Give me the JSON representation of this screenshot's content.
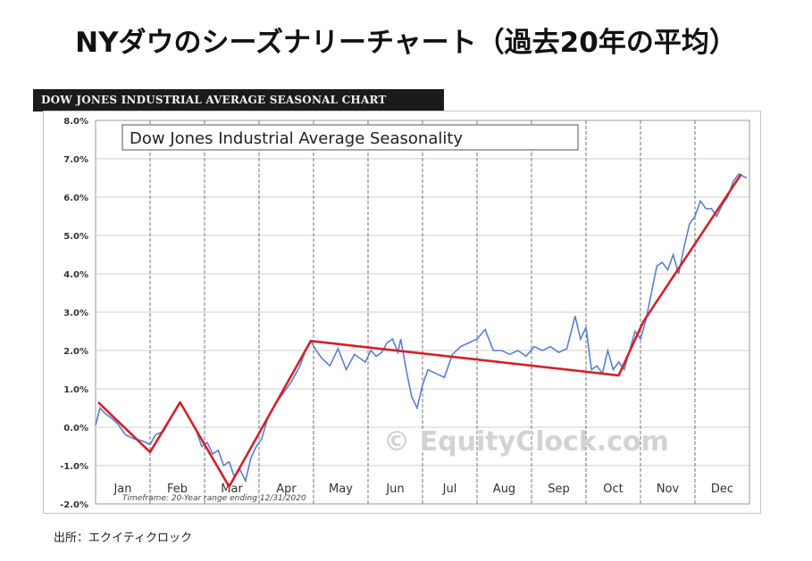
{
  "page": {
    "title": "NYダウのシーズナリーチャート（過去20年の平均）",
    "banner": "DOW JONES INDUSTRIAL AVERAGE SEASONAL CHART",
    "source": "出所：エクイティクロック"
  },
  "chart_data": {
    "type": "line",
    "title": "Dow Jones Industrial Average Seasonality",
    "timeframe_note": "Timeframe: 20-Year range ending 12/31/2020",
    "watermark": "© EquityClock.com",
    "categories": [
      "Jan",
      "Feb",
      "Mar",
      "Apr",
      "May",
      "Jun",
      "Jul",
      "Aug",
      "Sep",
      "Oct",
      "Nov",
      "Dec"
    ],
    "xlim": [
      0,
      12
    ],
    "ylim": [
      -2.0,
      8.0
    ],
    "y_ticks": [
      -2.0,
      -1.0,
      0.0,
      1.0,
      2.0,
      3.0,
      4.0,
      5.0,
      6.0,
      7.0,
      8.0
    ],
    "y_tick_labels": [
      "-2.0%",
      "-1.0%",
      "0.0%",
      "1.0%",
      "2.0%",
      "3.0%",
      "4.0%",
      "5.0%",
      "6.0%",
      "7.0%",
      "8.0%"
    ],
    "grid": true,
    "colors": {
      "seasonal": "#5b7fcf",
      "trend": "#d4202a"
    },
    "series": [
      {
        "role": "seasonal",
        "x": [
          0.0,
          0.08,
          0.18,
          0.28,
          0.4,
          0.55,
          0.7,
          0.85,
          1.0,
          1.1,
          1.25,
          1.4,
          1.55,
          1.7,
          1.85,
          1.95,
          2.05,
          2.15,
          2.25,
          2.35,
          2.45,
          2.55,
          2.65,
          2.75,
          2.85,
          2.95,
          3.05,
          3.15,
          3.3,
          3.45,
          3.6,
          3.75,
          3.85,
          3.95,
          4.05,
          4.15,
          4.3,
          4.45,
          4.6,
          4.75,
          4.85,
          4.95,
          5.05,
          5.15,
          5.25,
          5.35,
          5.45,
          5.55,
          5.6,
          5.7,
          5.8,
          5.9,
          6.0,
          6.1,
          6.25,
          6.4,
          6.55,
          6.7,
          6.85,
          7.0,
          7.15,
          7.3,
          7.45,
          7.6,
          7.75,
          7.9,
          8.05,
          8.2,
          8.35,
          8.5,
          8.65,
          8.8,
          8.9,
          9.0,
          9.1,
          9.2,
          9.3,
          9.4,
          9.5,
          9.6,
          9.7,
          9.8,
          9.9,
          10.0,
          10.1,
          10.2,
          10.3,
          10.4,
          10.5,
          10.6,
          10.7,
          10.8,
          10.9,
          11.0,
          11.1,
          11.2,
          11.3,
          11.4,
          11.5,
          11.6,
          11.7,
          11.8,
          11.95
        ],
        "y": [
          0.05,
          0.5,
          0.35,
          0.25,
          0.1,
          -0.2,
          -0.3,
          -0.35,
          -0.45,
          -0.2,
          -0.1,
          0.3,
          0.65,
          0.3,
          -0.1,
          -0.5,
          -0.4,
          -0.7,
          -0.6,
          -1.0,
          -0.9,
          -1.3,
          -1.1,
          -1.4,
          -0.8,
          -0.5,
          -0.3,
          0.2,
          0.6,
          0.9,
          1.2,
          1.6,
          2.0,
          2.25,
          2.0,
          1.8,
          1.6,
          2.05,
          1.5,
          1.9,
          1.8,
          1.7,
          2.0,
          1.85,
          1.95,
          2.2,
          2.3,
          1.95,
          2.3,
          1.5,
          0.8,
          0.5,
          1.1,
          1.5,
          1.4,
          1.3,
          1.9,
          2.1,
          2.2,
          2.3,
          2.55,
          2.0,
          2.0,
          1.9,
          2.0,
          1.85,
          2.1,
          2.0,
          2.1,
          1.95,
          2.05,
          2.9,
          2.3,
          2.6,
          1.5,
          1.6,
          1.4,
          2.0,
          1.5,
          1.7,
          1.5,
          2.0,
          2.5,
          2.3,
          2.8,
          3.5,
          4.2,
          4.3,
          4.1,
          4.5,
          4.0,
          4.7,
          5.3,
          5.5,
          5.9,
          5.7,
          5.7,
          5.5,
          5.8,
          6.0,
          6.4,
          6.6,
          6.5
        ]
      },
      {
        "role": "trend",
        "x": [
          0.05,
          1.0,
          1.55,
          2.45,
          3.95,
          9.6,
          10.05,
          11.85
        ],
        "y": [
          0.65,
          -0.65,
          0.65,
          -1.55,
          2.25,
          1.35,
          2.75,
          6.6
        ]
      }
    ]
  }
}
